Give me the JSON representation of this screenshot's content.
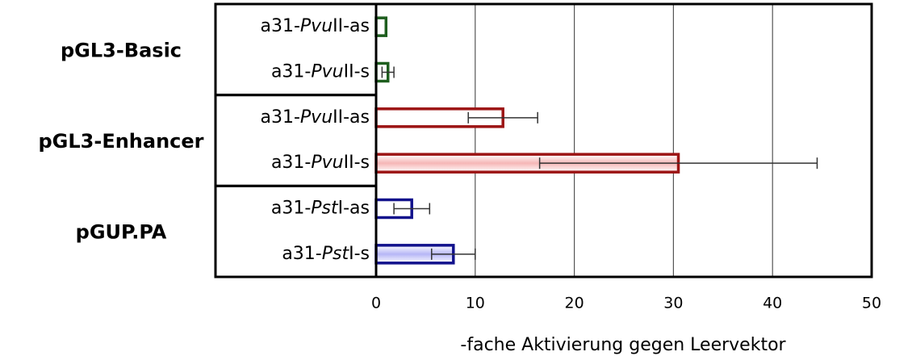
{
  "chart_data": {
    "type": "bar",
    "orientation": "horizontal",
    "groups": [
      "pGL3-Basic",
      "pGL3-Enhancer",
      "pGUP.PA"
    ],
    "categories": [
      "a31-PvuII-as",
      "a31-PvuII-s",
      "a31-PvuII-as",
      "a31-PvuII-s",
      "a31-PstI-as",
      "a31-PstI-s"
    ],
    "italic": [
      "Pvu",
      "Pvu",
      "Pvu",
      "Pvu",
      "Pst",
      "Pst"
    ],
    "values": [
      1.0,
      1.2,
      12.8,
      30.5,
      3.6,
      7.8
    ],
    "errors": [
      null,
      0.6,
      3.5,
      14,
      1.8,
      2.2
    ],
    "colors": [
      "#1e5e1e",
      "#1e5e1e",
      "#9c1414",
      "#9c1414",
      "#12128c",
      "#12128c"
    ],
    "xlabel": "-fache Aktivierung gegen Leervektor",
    "xlim": [
      0,
      50
    ],
    "xticks": [
      0,
      10,
      20,
      30,
      40,
      50
    ],
    "grid": true
  }
}
